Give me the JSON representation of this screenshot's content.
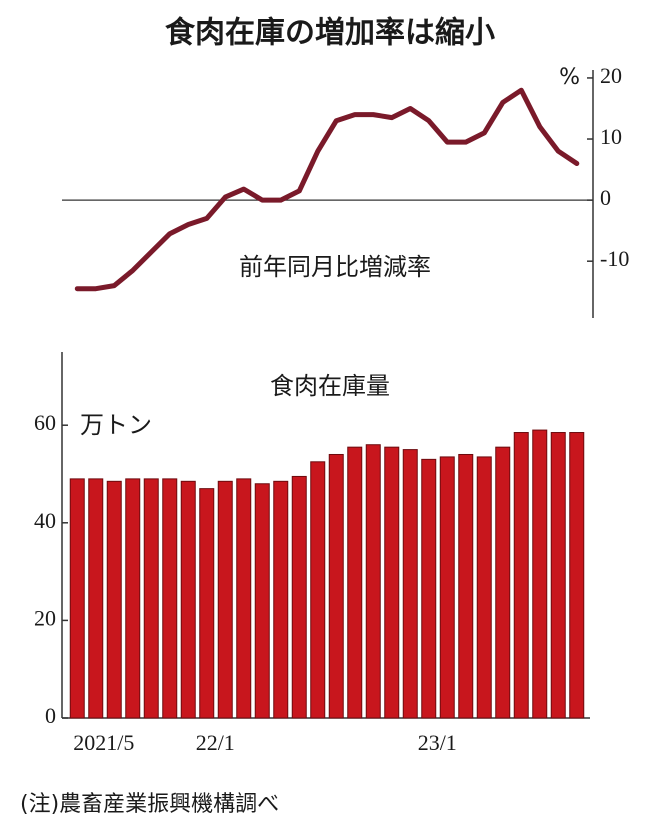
{
  "title": "食肉在庫の増加率は縮小",
  "note": "(注)農畜産業振興機構調べ",
  "chart_data": [
    {
      "type": "line",
      "label": "前年同月比増減率",
      "unit": "%",
      "color": "#7a1a2a",
      "values": [
        -14.5,
        -14.5,
        -14,
        -11.5,
        -8.5,
        -5.5,
        -4,
        -3,
        0.5,
        1.8,
        0,
        0,
        1.5,
        8,
        13,
        14,
        14,
        13.5,
        15,
        13,
        9.5,
        9.5,
        11,
        16,
        18,
        12,
        8,
        6
      ],
      "ylim": [
        -19.3,
        21.3
      ],
      "yticks": [
        20,
        10,
        0,
        -10
      ]
    },
    {
      "type": "bar",
      "label": "食肉在庫量",
      "unit": "万トン",
      "color": "#c8161d",
      "categories": [
        "2021/5",
        null,
        null,
        null,
        null,
        null,
        null,
        null,
        "22/1",
        null,
        null,
        null,
        null,
        null,
        null,
        null,
        null,
        null,
        null,
        null,
        "23/1",
        null,
        null,
        null,
        null,
        null,
        null,
        null
      ],
      "values": [
        49,
        49,
        48.5,
        49,
        49,
        49,
        48.5,
        47,
        48.5,
        49,
        48,
        48.5,
        49.5,
        52.5,
        54,
        55.5,
        56,
        55.5,
        55,
        53,
        53.5,
        54,
        53.5,
        55.5,
        58.5,
        59,
        58.5,
        58.5
      ],
      "ylim": [
        0,
        75
      ],
      "yticks": [
        0,
        20,
        40,
        60
      ]
    }
  ]
}
